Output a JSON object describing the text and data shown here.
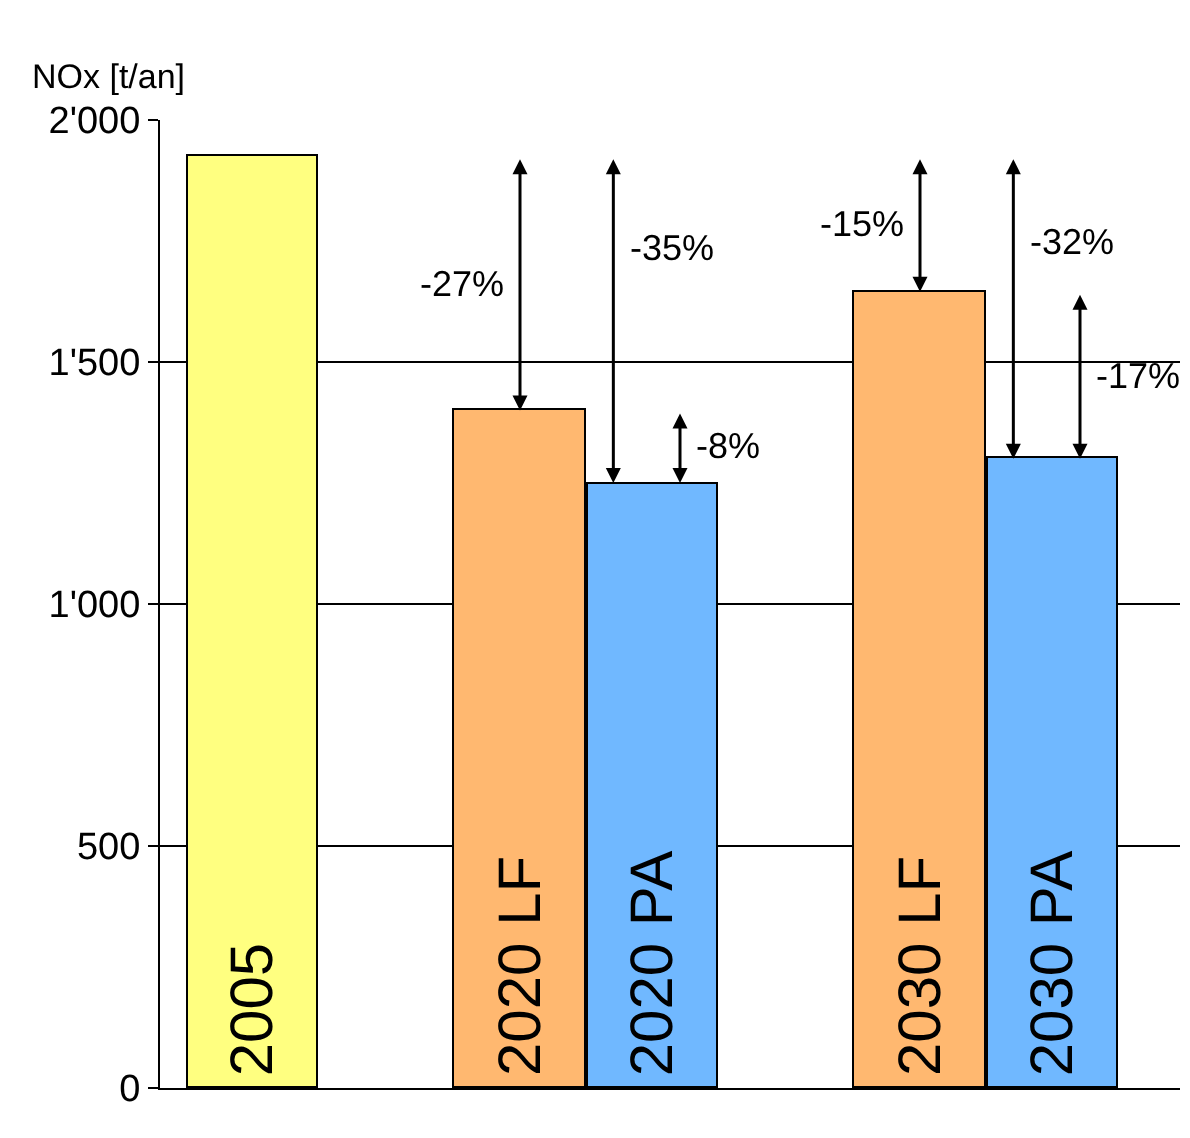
{
  "chart_data": {
    "type": "bar",
    "ylabel": "NOx [t/an]",
    "categories": [
      "2005",
      null,
      "2020 LF",
      "2020 PA",
      null,
      "2030 LF",
      "2030 PA"
    ],
    "values": [
      1925,
      null,
      1400,
      1250,
      null,
      1645,
      1300
    ],
    "colors": [
      "#ffff80",
      "#ffffff",
      "#ffb870",
      "#70b8ff",
      "#ffffff",
      "#ffb870",
      "#70b8ff"
    ],
    "ylim": [
      0,
      2000
    ],
    "yticks": [
      {
        "value": 0,
        "label": "0"
      },
      {
        "value": 500,
        "label": "500"
      },
      {
        "value": 1000,
        "label": "1'000"
      },
      {
        "value": 1500,
        "label": "1'500"
      },
      {
        "value": 2000,
        "label": "2'000"
      }
    ],
    "grid": "y",
    "tick_labels": "y",
    "annotations": [
      "-27%",
      "-35%",
      "-8%",
      "-15%",
      "-32%",
      "-17%"
    ]
  }
}
